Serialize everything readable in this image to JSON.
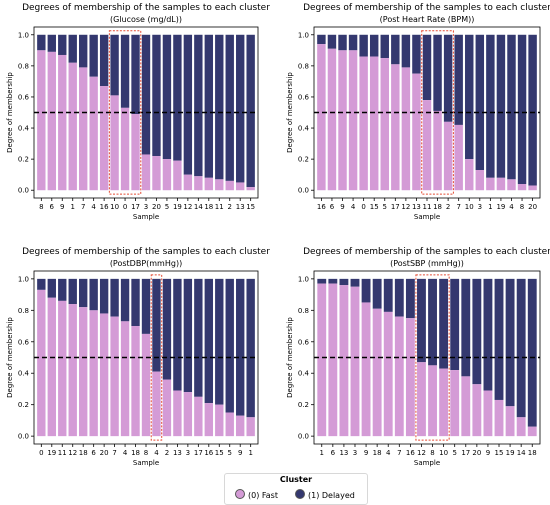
{
  "colors": {
    "fast": "#d49bd6",
    "delayed": "#34386f",
    "highlight": "#e34a33",
    "threshold": "#000000"
  },
  "legend": {
    "title": "Cluster",
    "items": [
      {
        "label": "(0) Fast",
        "color": "#d49bd6"
      },
      {
        "label": "(1) Delayed",
        "color": "#34386f"
      }
    ]
  },
  "chart_data": [
    {
      "type": "bar",
      "title": "Degrees of membership of the samples to each cluster",
      "subtitle": "(Glucose (mg/dL))",
      "xlabel": "Sample",
      "ylabel": "Degree of membership",
      "ylim": [
        -0.05,
        1.05
      ],
      "yticks": [
        "0.0",
        "0.2",
        "0.4",
        "0.6",
        "0.8",
        "1.0"
      ],
      "threshold": 0.5,
      "categories": [
        "8",
        "6",
        "9",
        "1",
        "7",
        "4",
        "16",
        "10",
        "0",
        "17",
        "3",
        "20",
        "5",
        "19",
        "12",
        "14",
        "18",
        "11",
        "2",
        "13",
        "15"
      ],
      "series": [
        {
          "values": [
            0.9,
            0.89,
            0.87,
            0.82,
            0.79,
            0.73,
            0.67,
            0.61,
            0.53,
            0.49,
            0.23,
            0.22,
            0.2,
            0.19,
            0.1,
            0.09,
            0.08,
            0.07,
            0.06,
            0.05,
            0.02
          ]
        }
      ],
      "highlight": [
        7,
        9
      ]
    },
    {
      "type": "bar",
      "title": "Degrees of membership of the samples to each cluster",
      "subtitle": "(Post Heart Rate (BPM))",
      "xlabel": "Sample",
      "ylabel": "Degree of membership",
      "ylim": [
        -0.05,
        1.05
      ],
      "yticks": [
        "0.0",
        "0.2",
        "0.4",
        "0.6",
        "0.8",
        "1.0"
      ],
      "threshold": 0.5,
      "categories": [
        "16",
        "6",
        "9",
        "4",
        "0",
        "15",
        "5",
        "17",
        "12",
        "13",
        "11",
        "18",
        "2",
        "7",
        "10",
        "3",
        "1",
        "19",
        "4",
        "8",
        "20"
      ],
      "series": [
        {
          "values": [
            0.94,
            0.91,
            0.9,
            0.9,
            0.86,
            0.86,
            0.85,
            0.81,
            0.79,
            0.75,
            0.58,
            0.51,
            0.44,
            0.42,
            0.2,
            0.13,
            0.08,
            0.08,
            0.07,
            0.04,
            0.03
          ]
        }
      ],
      "highlight": [
        10,
        12
      ]
    },
    {
      "type": "bar",
      "title": "Degrees of membership of the samples to each cluster",
      "subtitle": "(PostDBP(mmHg))",
      "xlabel": "Sample",
      "ylabel": "Degree of membership",
      "ylim": [
        -0.05,
        1.05
      ],
      "yticks": [
        "0.0",
        "0.2",
        "0.4",
        "0.6",
        "0.8",
        "1.0"
      ],
      "threshold": 0.5,
      "categories": [
        "0",
        "19",
        "11",
        "12",
        "18",
        "6",
        "20",
        "7",
        "4",
        "18",
        "8",
        "4",
        "2",
        "13",
        "3",
        "17",
        "16",
        "15",
        "5",
        "9",
        "1"
      ],
      "series": [
        {
          "values": [
            0.93,
            0.88,
            0.86,
            0.84,
            0.82,
            0.8,
            0.78,
            0.76,
            0.73,
            0.7,
            0.65,
            0.41,
            0.36,
            0.29,
            0.28,
            0.25,
            0.21,
            0.2,
            0.15,
            0.13,
            0.12
          ]
        }
      ],
      "highlight": [
        11,
        11
      ]
    },
    {
      "type": "bar",
      "title": "Degrees of membership of the samples to each cluster",
      "subtitle": "(PostSBP (mmHg))",
      "xlabel": "Sample",
      "ylabel": "Degree of membership",
      "ylim": [
        -0.05,
        1.05
      ],
      "yticks": [
        "0.0",
        "0.2",
        "0.4",
        "0.6",
        "0.8",
        "1.0"
      ],
      "threshold": 0.5,
      "categories": [
        "1",
        "6",
        "13",
        "3",
        "9",
        "18",
        "4",
        "7",
        "16",
        "12",
        "8",
        "10",
        "5",
        "17",
        "20",
        "9",
        "15",
        "19",
        "14",
        "18"
      ],
      "series": [
        {
          "values": [
            0.97,
            0.97,
            0.96,
            0.95,
            0.85,
            0.81,
            0.79,
            0.76,
            0.75,
            0.47,
            0.45,
            0.43,
            0.42,
            0.38,
            0.33,
            0.29,
            0.23,
            0.19,
            0.12,
            0.06
          ]
        }
      ],
      "highlight": [
        9,
        11
      ]
    }
  ]
}
